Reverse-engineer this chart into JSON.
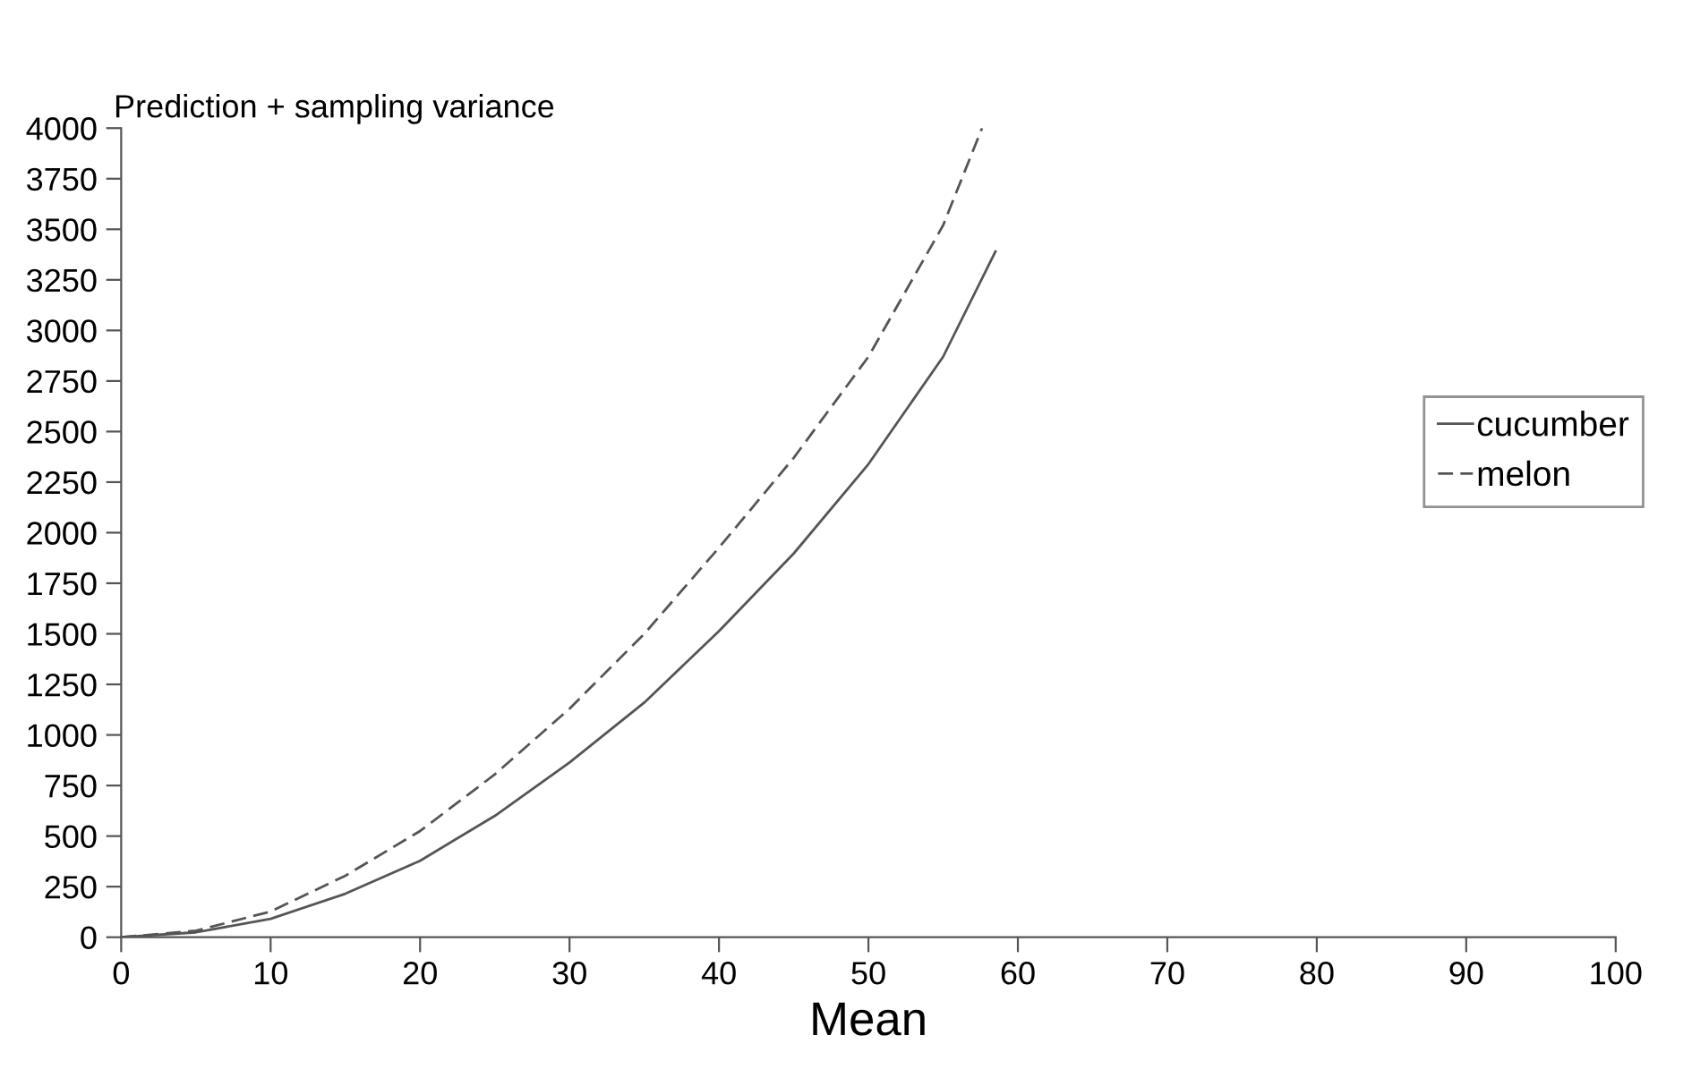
{
  "chart_data": {
    "type": "line",
    "ylabel": "Prediction + sampling variance",
    "xlabel": "Mean",
    "series": [
      {
        "name": "cucumber",
        "color": "#555555",
        "line_style": "solid",
        "x": [
          0,
          5,
          10,
          15,
          20,
          25,
          30,
          35,
          40,
          45,
          50,
          55,
          58.5
        ],
        "values": [
          0,
          24,
          91,
          215,
          378,
          600,
          864,
          1160,
          1513,
          1897,
          2339,
          2870,
          3390
        ]
      },
      {
        "name": "melon",
        "color": "#555555",
        "line_style": "dashed",
        "x": [
          0,
          5,
          10,
          15,
          20,
          25,
          30,
          35,
          40,
          45,
          50,
          55,
          57.6
        ],
        "values": [
          0,
          32,
          127,
          304,
          525,
          805,
          1130,
          1500,
          1926,
          2370,
          2870,
          3520,
          4000
        ]
      }
    ],
    "xlim": [
      0,
      100
    ],
    "xticks": [
      0,
      10,
      20,
      30,
      40,
      50,
      60,
      70,
      80,
      90,
      100
    ],
    "ylim": [
      0,
      4000
    ],
    "yticks": [
      0,
      250,
      500,
      750,
      1000,
      1250,
      1500,
      1750,
      2000,
      2250,
      2500,
      2750,
      3000,
      3250,
      3500,
      3750,
      4000
    ],
    "grid": false,
    "legend": "right",
    "marker": "none"
  }
}
